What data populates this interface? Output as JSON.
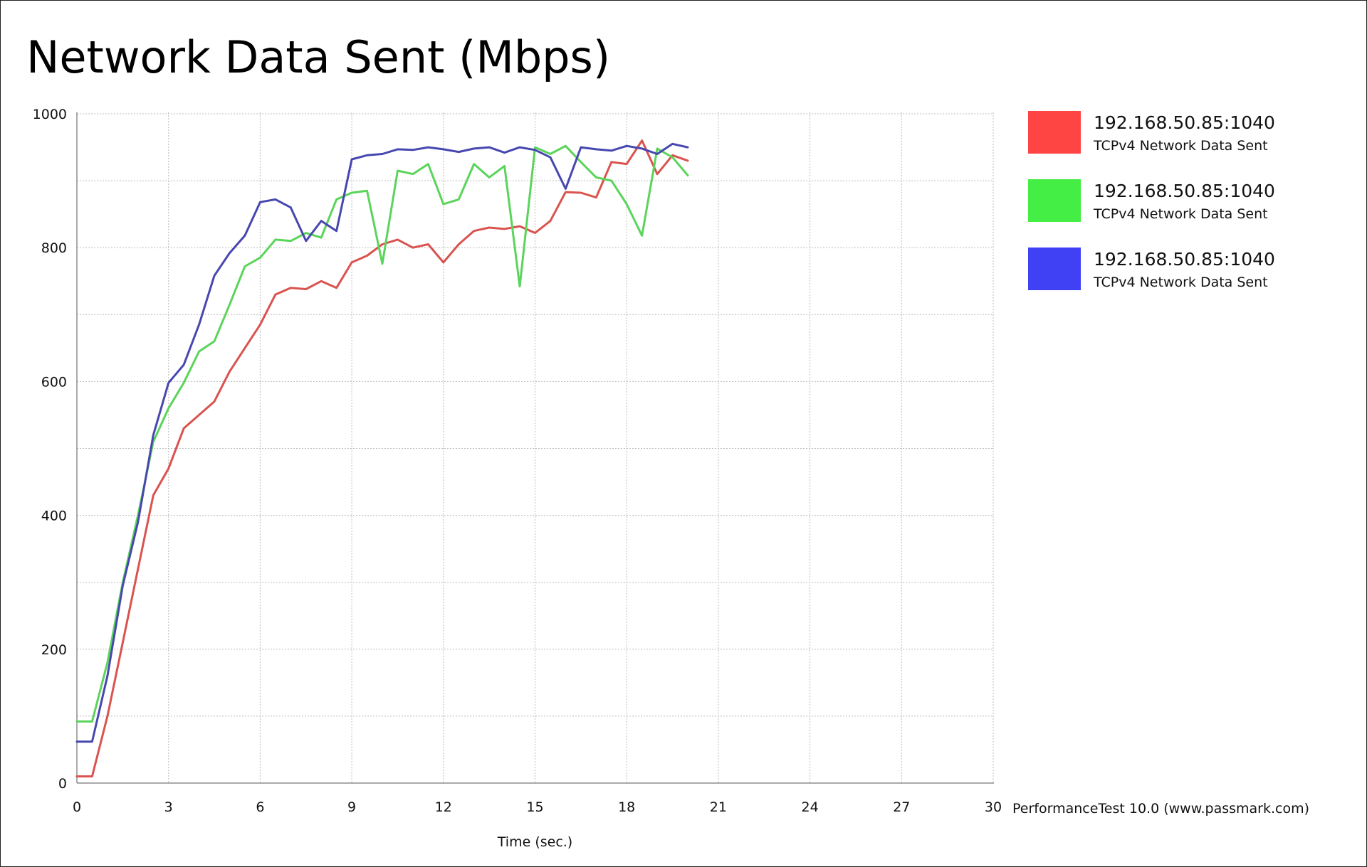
{
  "chart_data": {
    "type": "line",
    "title": "Network Data Sent (Mbps)",
    "xlabel": "Time (sec.)",
    "ylabel": "",
    "xlim": [
      0,
      30
    ],
    "ylim": [
      0,
      1000
    ],
    "xticks": [
      0,
      3,
      6,
      9,
      12,
      15,
      18,
      21,
      24,
      27,
      30
    ],
    "yticks": [
      0,
      200,
      400,
      600,
      800,
      1000
    ],
    "grid": true,
    "legend_position": "right",
    "credit": "PerformanceTest 10.0 (www.passmark.com)",
    "series": [
      {
        "name": "192.168.50.85:1040",
        "description": "TCPv4 Network Data Sent",
        "color": "#d9534f",
        "swatch": "#ff4444",
        "points": [
          [
            0.0,
            10
          ],
          [
            0.5,
            10
          ],
          [
            1.0,
            100
          ],
          [
            1.5,
            210
          ],
          [
            2.0,
            320
          ],
          [
            2.5,
            430
          ],
          [
            3.0,
            470
          ],
          [
            3.5,
            530
          ],
          [
            4.0,
            550
          ],
          [
            4.5,
            570
          ],
          [
            5.0,
            615
          ],
          [
            5.5,
            650
          ],
          [
            6.0,
            685
          ],
          [
            6.5,
            730
          ],
          [
            7.0,
            740
          ],
          [
            7.5,
            738
          ],
          [
            8.0,
            750
          ],
          [
            8.5,
            740
          ],
          [
            9.0,
            778
          ],
          [
            9.5,
            788
          ],
          [
            10.0,
            805
          ],
          [
            10.5,
            812
          ],
          [
            11.0,
            800
          ],
          [
            11.5,
            805
          ],
          [
            12.0,
            778
          ],
          [
            12.5,
            805
          ],
          [
            13.0,
            825
          ],
          [
            13.5,
            830
          ],
          [
            14.0,
            828
          ],
          [
            14.5,
            832
          ],
          [
            15.0,
            822
          ],
          [
            15.5,
            840
          ],
          [
            16.0,
            883
          ],
          [
            16.5,
            882
          ],
          [
            17.0,
            875
          ],
          [
            17.5,
            928
          ],
          [
            18.0,
            925
          ],
          [
            18.5,
            960
          ],
          [
            19.0,
            910
          ],
          [
            19.5,
            938
          ],
          [
            20.0,
            930
          ]
        ]
      },
      {
        "name": "192.168.50.85:1040",
        "description": "TCPv4 Network Data Sent",
        "color": "#5bd45b",
        "swatch": "#44ee44",
        "points": [
          [
            0.0,
            92
          ],
          [
            0.5,
            92
          ],
          [
            1.0,
            180
          ],
          [
            1.5,
            300
          ],
          [
            2.0,
            400
          ],
          [
            2.5,
            510
          ],
          [
            3.0,
            560
          ],
          [
            3.5,
            598
          ],
          [
            4.0,
            645
          ],
          [
            4.5,
            660
          ],
          [
            5.0,
            715
          ],
          [
            5.5,
            772
          ],
          [
            6.0,
            785
          ],
          [
            6.5,
            812
          ],
          [
            7.0,
            810
          ],
          [
            7.5,
            822
          ],
          [
            8.0,
            815
          ],
          [
            8.5,
            872
          ],
          [
            9.0,
            882
          ],
          [
            9.5,
            885
          ],
          [
            10.0,
            776
          ],
          [
            10.5,
            915
          ],
          [
            11.0,
            910
          ],
          [
            11.5,
            925
          ],
          [
            12.0,
            865
          ],
          [
            12.5,
            872
          ],
          [
            13.0,
            925
          ],
          [
            13.5,
            905
          ],
          [
            14.0,
            922
          ],
          [
            14.5,
            742
          ],
          [
            15.0,
            950
          ],
          [
            15.5,
            940
          ],
          [
            16.0,
            952
          ],
          [
            16.5,
            928
          ],
          [
            17.0,
            905
          ],
          [
            17.5,
            900
          ],
          [
            18.0,
            865
          ],
          [
            18.5,
            818
          ],
          [
            19.0,
            948
          ],
          [
            19.5,
            935
          ],
          [
            20.0,
            908
          ]
        ]
      },
      {
        "name": "192.168.50.85:1040",
        "description": "TCPv4 Network Data Sent",
        "color": "#4747b0",
        "swatch": "#4040f5",
        "points": [
          [
            0.0,
            62
          ],
          [
            0.5,
            62
          ],
          [
            1.0,
            160
          ],
          [
            1.5,
            295
          ],
          [
            2.0,
            390
          ],
          [
            2.5,
            520
          ],
          [
            3.0,
            598
          ],
          [
            3.5,
            625
          ],
          [
            4.0,
            685
          ],
          [
            4.5,
            758
          ],
          [
            5.0,
            792
          ],
          [
            5.5,
            818
          ],
          [
            6.0,
            868
          ],
          [
            6.5,
            872
          ],
          [
            7.0,
            860
          ],
          [
            7.5,
            810
          ],
          [
            8.0,
            840
          ],
          [
            8.5,
            825
          ],
          [
            9.0,
            932
          ],
          [
            9.5,
            938
          ],
          [
            10.0,
            940
          ],
          [
            10.5,
            947
          ],
          [
            11.0,
            946
          ],
          [
            11.5,
            950
          ],
          [
            12.0,
            947
          ],
          [
            12.5,
            943
          ],
          [
            13.0,
            948
          ],
          [
            13.5,
            950
          ],
          [
            14.0,
            942
          ],
          [
            14.5,
            950
          ],
          [
            15.0,
            946
          ],
          [
            15.5,
            935
          ],
          [
            16.0,
            888
          ],
          [
            16.5,
            950
          ],
          [
            17.0,
            947
          ],
          [
            17.5,
            945
          ],
          [
            18.0,
            952
          ],
          [
            18.5,
            948
          ],
          [
            19.0,
            940
          ],
          [
            19.5,
            955
          ],
          [
            20.0,
            950
          ]
        ]
      }
    ]
  }
}
